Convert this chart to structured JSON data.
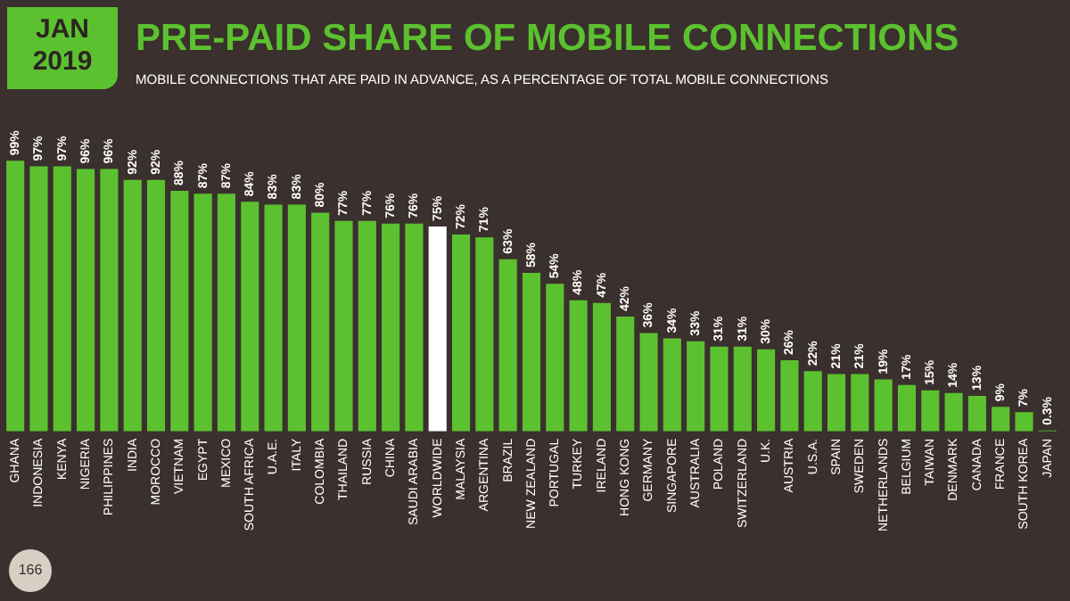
{
  "chart_data": {
    "type": "bar",
    "title": "PRE-PAID SHARE OF MOBILE CONNECTIONS",
    "subtitle": "MOBILE CONNECTIONS THAT ARE PAID IN ADVANCE, AS A PERCENTAGE OF TOTAL MOBILE CONNECTIONS",
    "annotations": [
      "JAN\n2019",
      "166"
    ],
    "categories": [
      "GHANA",
      "INDONESIA",
      "KENYA",
      "NIGERIA",
      "PHILIPPINES",
      "INDIA",
      "MOROCCO",
      "VIETNAM",
      "EGYPT",
      "MEXICO",
      "SOUTH AFRICA",
      "U.A.E.",
      "ITALY",
      "COLOMBIA",
      "THAILAND",
      "RUSSIA",
      "CHINA",
      "SAUDI ARABIA",
      "WORLDWIDE",
      "MALAYSIA",
      "ARGENTINA",
      "BRAZIL",
      "NEW ZEALAND",
      "PORTUGAL",
      "TURKEY",
      "IRELAND",
      "HONG KONG",
      "GERMANY",
      "SINGAPORE",
      "AUSTRALIA",
      "POLAND",
      "SWITZERLAND",
      "U.K.",
      "AUSTRIA",
      "U.S.A.",
      "SPAIN",
      "SWEDEN",
      "NETHERLANDS",
      "BELGIUM",
      "TAIWAN",
      "DENMARK",
      "CANADA",
      "FRANCE",
      "SOUTH KOREA",
      "JAPAN"
    ],
    "values": [
      99,
      97,
      97,
      96,
      96,
      92,
      92,
      88,
      87,
      87,
      84,
      83,
      83,
      80,
      77,
      77,
      76,
      76,
      75,
      72,
      71,
      63,
      58,
      54,
      48,
      47,
      42,
      36,
      34,
      33,
      31,
      31,
      30,
      26,
      22,
      21,
      21,
      19,
      17,
      15,
      14,
      13,
      9,
      7,
      0.3
    ],
    "value_labels": [
      "99%",
      "97%",
      "97%",
      "96%",
      "96%",
      "92%",
      "92%",
      "88%",
      "87%",
      "87%",
      "84%",
      "83%",
      "83%",
      "80%",
      "77%",
      "77%",
      "76%",
      "76%",
      "75%",
      "72%",
      "71%",
      "63%",
      "58%",
      "54%",
      "48%",
      "47%",
      "42%",
      "36%",
      "34%",
      "33%",
      "31%",
      "31%",
      "30%",
      "26%",
      "22%",
      "21%",
      "21%",
      "19%",
      "17%",
      "15%",
      "14%",
      "13%",
      "9%",
      "7%",
      "0.3%"
    ],
    "colors": [
      "#5cc12f",
      "#5cc12f",
      "#5cc12f",
      "#5cc12f",
      "#5cc12f",
      "#5cc12f",
      "#5cc12f",
      "#5cc12f",
      "#5cc12f",
      "#5cc12f",
      "#5cc12f",
      "#5cc12f",
      "#5cc12f",
      "#5cc12f",
      "#5cc12f",
      "#5cc12f",
      "#5cc12f",
      "#5cc12f",
      "#ffffff",
      "#5cc12f",
      "#5cc12f",
      "#5cc12f",
      "#5cc12f",
      "#5cc12f",
      "#5cc12f",
      "#5cc12f",
      "#5cc12f",
      "#5cc12f",
      "#5cc12f",
      "#5cc12f",
      "#5cc12f",
      "#5cc12f",
      "#5cc12f",
      "#5cc12f",
      "#5cc12f",
      "#5cc12f",
      "#5cc12f",
      "#5cc12f",
      "#5cc12f",
      "#5cc12f",
      "#5cc12f",
      "#5cc12f",
      "#5cc12f",
      "#5cc12f",
      "#5cc12f"
    ],
    "tick_labels": "x",
    "grid": false,
    "legend": false
  }
}
